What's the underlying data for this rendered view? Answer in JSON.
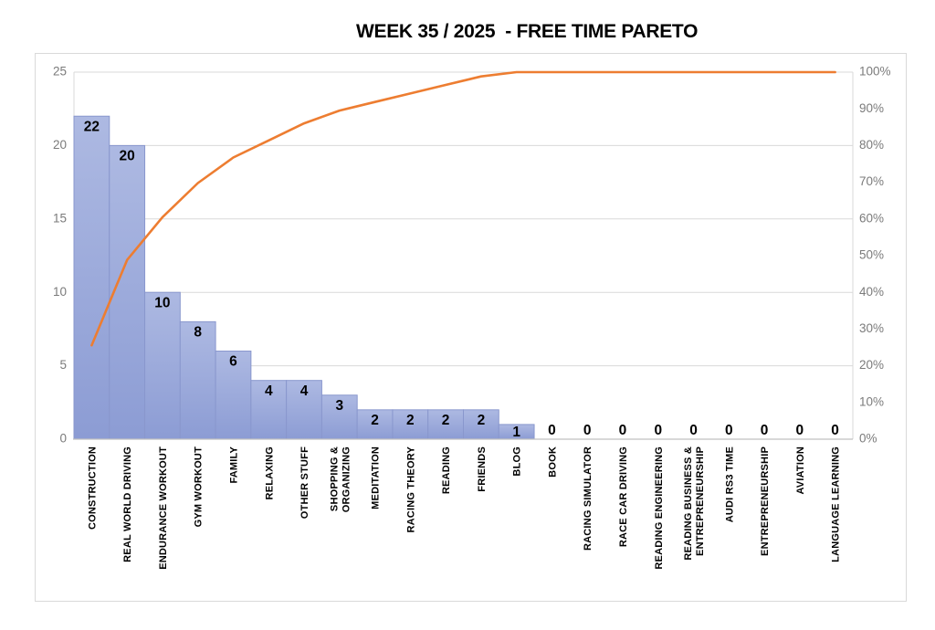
{
  "title": "WEEK 35 / 2025  - FREE TIME PARETO",
  "colors": {
    "bar_fill_top": "#ADB9E2",
    "bar_fill_bottom": "#8C9CD4",
    "bar_border": "#8997CD",
    "line": "#ED7D31",
    "gridline": "#D9D9D9",
    "axis_line": "#C0C0C0",
    "axis_text": "#7B7B7B",
    "data_label_text": "#000000",
    "category_text": "#000000",
    "frame_border": "#D9D9D9"
  },
  "chart_data": {
    "type": "bar",
    "subtype": "pareto-combo-bar-line",
    "title": "WEEK 35 / 2025  - FREE TIME PARETO",
    "categories": [
      "CONSTRUCTION",
      "REAL WORLD DRIVING",
      "ENDURANCE WORKOUT",
      "GYM WORKOUT",
      "FAMILY",
      "RELAXING",
      "OTHER STUFF",
      "SHOPPING &\nORGANIZING",
      "MEDITATION",
      "RACING THEORY",
      "READING",
      "FRIENDS",
      "BLOG",
      "BOOK",
      "RACING SIMULATOR",
      "RACE CAR DRIVING",
      "READING ENGINEERING",
      "READING BUSINESS &\nENTREPRENEURSHIP",
      "AUDI RS3 TIME",
      "ENTREPRENEURSHIP",
      "AVIATION",
      "LANGUAGE LEARNING"
    ],
    "series": [
      {
        "name": "hours",
        "render": "bar",
        "axis": "left",
        "values": [
          22,
          20,
          10,
          8,
          6,
          4,
          4,
          3,
          2,
          2,
          2,
          2,
          1,
          0,
          0,
          0,
          0,
          0,
          0,
          0,
          0,
          0
        ],
        "data_labels": [
          "22",
          "20",
          "10",
          "8",
          "6",
          "4",
          "4",
          "3",
          "2",
          "2",
          "2",
          "2",
          "1",
          "0",
          "0",
          "0",
          "0",
          "0",
          "0",
          "0",
          "0",
          "0"
        ]
      },
      {
        "name": "cumulative-percent",
        "render": "line",
        "axis": "right",
        "values": [
          25.58,
          48.84,
          60.47,
          69.77,
          76.74,
          81.4,
          86.05,
          89.53,
          91.86,
          94.19,
          96.51,
          98.84,
          100,
          100,
          100,
          100,
          100,
          100,
          100,
          100,
          100,
          100
        ]
      }
    ],
    "left_axis": {
      "min": 0,
      "max": 25,
      "step": 5,
      "ticks": [
        "0",
        "5",
        "10",
        "15",
        "20",
        "25"
      ]
    },
    "right_axis": {
      "min": 0,
      "max": 100,
      "step": 10,
      "ticks": [
        "0%",
        "10%",
        "20%",
        "30%",
        "40%",
        "50%",
        "60%",
        "70%",
        "80%",
        "90%",
        "100%"
      ]
    },
    "grid": true,
    "legend": "none"
  }
}
